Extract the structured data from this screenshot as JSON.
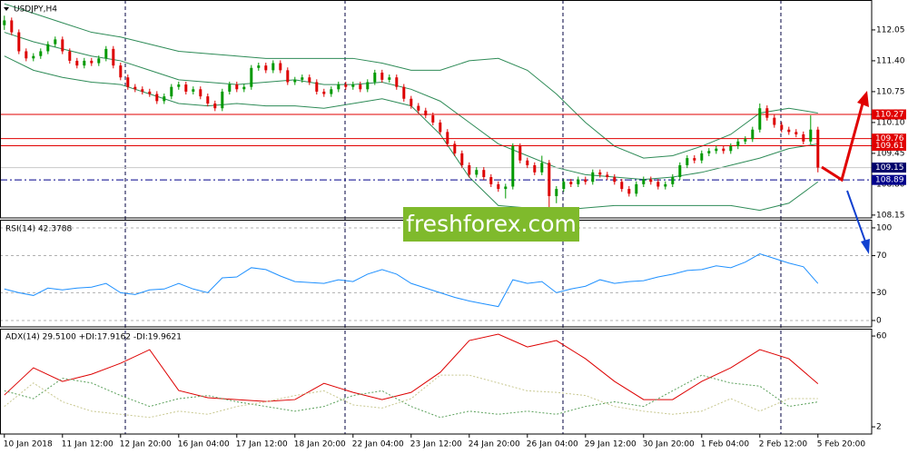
{
  "chart_data": [
    {
      "type": "candlestick",
      "title": "USDJPY,H4",
      "watermark": "freshforex.com",
      "up_color": "#009900",
      "down_color": "#dd0000",
      "xlim": [
        -0.6,
        119.4
      ],
      "xticks": [
        {
          "value": 0,
          "label": "10 Jan 2018"
        },
        {
          "value": 8,
          "label": "11 Jan 12:00"
        },
        {
          "value": 16,
          "label": "12 Jan 20:00"
        },
        {
          "value": 24,
          "label": "16 Jan 04:00"
        },
        {
          "value": 32,
          "label": "17 Jan 12:00"
        },
        {
          "value": 40,
          "label": "18 Jan 20:00"
        },
        {
          "value": 48,
          "label": "22 Jan 04:00"
        },
        {
          "value": 56,
          "label": "23 Jan 12:00"
        },
        {
          "value": 64,
          "label": "24 Jan 20:00"
        },
        {
          "value": 72,
          "label": "26 Jan 04:00"
        },
        {
          "value": 80,
          "label": "29 Jan 12:00"
        },
        {
          "value": 88,
          "label": "30 Jan 20:00"
        },
        {
          "value": 96,
          "label": "1 Feb 04:00"
        },
        {
          "value": 104,
          "label": "2 Feb 12:00"
        },
        {
          "value": 112,
          "label": "5 Feb 20:00"
        }
      ],
      "ylim": [
        108.09,
        112.68
      ],
      "yticks": [
        112.05,
        {
          "value": 111.4,
          "label": "111.40"
        },
        110.75,
        {
          "value": 110.1,
          "label": "110.10"
        },
        109.45,
        {
          "value": 108.8,
          "label": "108.80"
        },
        108.15
      ],
      "levels": [
        {
          "value": 110.27,
          "color": "#e00000",
          "line_color": "#e00000"
        },
        {
          "value": 109.76,
          "color": "#e00000",
          "line_color": "#e00000"
        },
        {
          "value": 109.61,
          "color": "#e00000",
          "line_color": "#e00000"
        },
        {
          "value": 109.15,
          "color": "#00006a",
          "line_color": "#c8c8c8"
        },
        {
          "value": 108.89,
          "color": "#00008b",
          "line_color": "#00008b",
          "dash": "8,3,2,3"
        }
      ],
      "ohlc": [
        [
          112.15,
          112.35,
          112.05,
          112.25
        ],
        [
          112.25,
          112.31,
          111.94,
          112.0
        ],
        [
          112.0,
          112.06,
          111.54,
          111.6
        ],
        [
          111.6,
          111.66,
          111.39,
          111.45
        ],
        [
          111.45,
          111.56,
          111.39,
          111.5
        ],
        [
          111.5,
          111.66,
          111.44,
          111.6
        ],
        [
          111.6,
          111.81,
          111.54,
          111.75
        ],
        [
          111.75,
          111.91,
          111.69,
          111.85
        ],
        [
          111.85,
          111.91,
          111.54,
          111.6
        ],
        [
          111.6,
          111.66,
          111.34,
          111.4
        ],
        [
          111.4,
          111.46,
          111.24,
          111.3
        ],
        [
          111.3,
          111.46,
          111.24,
          111.4
        ],
        [
          111.4,
          111.46,
          111.29,
          111.35
        ],
        [
          111.35,
          111.51,
          111.29,
          111.45
        ],
        [
          111.45,
          111.71,
          111.39,
          111.65
        ],
        [
          111.65,
          111.71,
          111.24,
          111.3
        ],
        [
          111.3,
          111.36,
          110.99,
          111.05
        ],
        [
          111.05,
          111.11,
          110.79,
          110.85
        ],
        [
          110.85,
          110.91,
          110.74,
          110.8
        ],
        [
          110.8,
          110.86,
          110.69,
          110.75
        ],
        [
          110.75,
          110.81,
          110.64,
          110.7
        ],
        [
          110.7,
          110.76,
          110.49,
          110.55
        ],
        [
          110.55,
          110.71,
          110.49,
          110.65
        ],
        [
          110.65,
          110.91,
          110.59,
          110.85
        ],
        [
          110.85,
          110.96,
          110.79,
          110.9
        ],
        [
          110.9,
          110.96,
          110.69,
          110.75
        ],
        [
          110.75,
          110.86,
          110.69,
          110.8
        ],
        [
          110.8,
          110.86,
          110.59,
          110.65
        ],
        [
          110.65,
          110.71,
          110.44,
          110.5
        ],
        [
          110.5,
          110.56,
          110.34,
          110.4
        ],
        [
          110.4,
          110.81,
          110.34,
          110.75
        ],
        [
          110.75,
          110.96,
          110.69,
          110.9
        ],
        [
          110.9,
          110.96,
          110.74,
          110.8
        ],
        [
          110.8,
          110.91,
          110.74,
          110.85
        ],
        [
          110.85,
          111.31,
          110.79,
          111.25
        ],
        [
          111.25,
          111.36,
          111.19,
          111.3
        ],
        [
          111.3,
          111.36,
          111.14,
          111.2
        ],
        [
          111.2,
          111.41,
          111.14,
          111.35
        ],
        [
          111.35,
          111.41,
          111.14,
          111.2
        ],
        [
          111.2,
          111.26,
          110.89,
          110.95
        ],
        [
          110.95,
          111.06,
          110.89,
          111.0
        ],
        [
          111.0,
          111.11,
          110.94,
          111.05
        ],
        [
          111.05,
          111.11,
          110.89,
          110.95
        ],
        [
          110.95,
          111.01,
          110.69,
          110.75
        ],
        [
          110.75,
          110.81,
          110.64,
          110.7
        ],
        [
          110.7,
          110.86,
          110.64,
          110.8
        ],
        [
          110.8,
          110.96,
          110.74,
          110.9
        ],
        [
          110.9,
          110.96,
          110.79,
          110.85
        ],
        [
          110.85,
          110.96,
          110.79,
          110.9
        ],
        [
          110.9,
          110.96,
          110.74,
          110.8
        ],
        [
          110.8,
          111.01,
          110.74,
          110.95
        ],
        [
          110.95,
          111.21,
          110.89,
          111.15
        ],
        [
          111.15,
          111.21,
          110.94,
          111.0
        ],
        [
          111.0,
          111.11,
          110.94,
          111.05
        ],
        [
          111.05,
          111.11,
          110.79,
          110.85
        ],
        [
          110.85,
          110.91,
          110.54,
          110.6
        ],
        [
          110.6,
          110.66,
          110.39,
          110.45
        ],
        [
          110.45,
          110.51,
          110.29,
          110.35
        ],
        [
          110.35,
          110.41,
          110.19,
          110.25
        ],
        [
          110.25,
          110.31,
          110.04,
          110.1
        ],
        [
          110.1,
          110.16,
          109.84,
          109.9
        ],
        [
          109.9,
          109.96,
          109.59,
          109.65
        ],
        [
          109.65,
          109.71,
          109.39,
          109.45
        ],
        [
          109.45,
          109.51,
          109.14,
          109.2
        ],
        [
          109.2,
          109.26,
          108.94,
          109.0
        ],
        [
          109.0,
          109.16,
          108.94,
          109.1
        ],
        [
          109.1,
          109.16,
          108.89,
          108.95
        ],
        [
          108.95,
          109.01,
          108.74,
          108.8
        ],
        [
          108.8,
          108.86,
          108.64,
          108.7
        ],
        [
          108.7,
          108.81,
          108.5,
          108.75
        ],
        [
          108.75,
          109.66,
          108.69,
          109.6
        ],
        [
          109.6,
          109.66,
          109.24,
          109.3
        ],
        [
          109.3,
          109.36,
          109.14,
          109.2
        ],
        [
          109.2,
          109.26,
          108.99,
          109.05
        ],
        [
          109.05,
          109.4,
          108.99,
          109.25
        ],
        [
          109.25,
          109.31,
          108.3,
          108.55
        ],
        [
          108.55,
          108.76,
          108.4,
          108.7
        ],
        [
          108.7,
          108.91,
          108.64,
          108.85
        ],
        [
          108.85,
          108.91,
          108.74,
          108.8
        ],
        [
          108.8,
          108.96,
          108.74,
          108.9
        ],
        [
          108.9,
          108.96,
          108.79,
          108.85
        ],
        [
          108.85,
          109.11,
          108.79,
          109.05
        ],
        [
          109.05,
          109.11,
          108.94,
          109.0
        ],
        [
          109.0,
          109.06,
          108.89,
          108.95
        ],
        [
          108.95,
          109.01,
          108.79,
          108.85
        ],
        [
          108.85,
          108.91,
          108.64,
          108.7
        ],
        [
          108.7,
          108.76,
          108.54,
          108.6
        ],
        [
          108.6,
          108.86,
          108.54,
          108.8
        ],
        [
          108.8,
          108.96,
          108.74,
          108.9
        ],
        [
          108.9,
          108.96,
          108.79,
          108.85
        ],
        [
          108.85,
          108.91,
          108.69,
          108.75
        ],
        [
          108.75,
          108.86,
          108.69,
          108.8
        ],
        [
          108.8,
          109.01,
          108.74,
          108.95
        ],
        [
          108.95,
          109.26,
          108.89,
          109.2
        ],
        [
          109.2,
          109.41,
          109.14,
          109.35
        ],
        [
          109.35,
          109.41,
          109.24,
          109.3
        ],
        [
          109.3,
          109.51,
          109.24,
          109.45
        ],
        [
          109.45,
          109.56,
          109.39,
          109.5
        ],
        [
          109.5,
          109.61,
          109.44,
          109.55
        ],
        [
          109.55,
          109.61,
          109.44,
          109.5
        ],
        [
          109.5,
          109.66,
          109.44,
          109.6
        ],
        [
          109.6,
          109.76,
          109.54,
          109.7
        ],
        [
          109.7,
          109.81,
          109.64,
          109.75
        ],
        [
          109.75,
          110.01,
          109.69,
          109.95
        ],
        [
          109.95,
          110.5,
          109.89,
          110.4
        ],
        [
          110.4,
          110.46,
          110.14,
          110.2
        ],
        [
          110.2,
          110.26,
          109.99,
          110.05
        ],
        [
          110.05,
          110.11,
          109.89,
          109.95
        ],
        [
          109.95,
          110.01,
          109.84,
          109.9
        ],
        [
          109.9,
          109.96,
          109.79,
          109.85
        ],
        [
          109.85,
          109.91,
          109.64,
          109.7
        ],
        [
          109.7,
          110.25,
          109.64,
          109.95
        ],
        [
          109.95,
          110.01,
          109.05,
          109.15
        ]
      ],
      "bands": {
        "color": "#2e8b57",
        "x": [
          0,
          4,
          8,
          12,
          16,
          20,
          24,
          28,
          32,
          36,
          40,
          44,
          48,
          52,
          56,
          60,
          64,
          68,
          72,
          76,
          80,
          84,
          88,
          92,
          96,
          100,
          104,
          108,
          112
        ],
        "upper": [
          112.6,
          112.4,
          112.2,
          112.0,
          111.9,
          111.75,
          111.6,
          111.55,
          111.5,
          111.45,
          111.45,
          111.45,
          111.45,
          111.35,
          111.2,
          111.2,
          111.4,
          111.45,
          111.2,
          110.7,
          110.1,
          109.6,
          109.35,
          109.4,
          109.6,
          109.85,
          110.3,
          110.4,
          110.3
        ],
        "middle": [
          112.0,
          111.8,
          111.65,
          111.5,
          111.4,
          111.2,
          111.0,
          110.95,
          110.9,
          110.95,
          111.0,
          110.9,
          110.9,
          110.95,
          110.8,
          110.55,
          110.1,
          109.65,
          109.4,
          109.15,
          109.0,
          108.95,
          108.9,
          108.95,
          109.05,
          109.2,
          109.35,
          109.55,
          109.65
        ],
        "lower": [
          111.5,
          111.2,
          111.05,
          110.95,
          110.9,
          110.7,
          110.5,
          110.45,
          110.5,
          110.45,
          110.45,
          110.4,
          110.5,
          110.6,
          110.45,
          109.85,
          108.95,
          108.35,
          108.3,
          108.25,
          108.3,
          108.35,
          108.35,
          108.35,
          108.35,
          108.35,
          108.25,
          108.4,
          108.85
        ]
      }
    },
    {
      "type": "line",
      "title": "RSI(14) 42.3788",
      "xlim": [
        -0.6,
        119.4
      ],
      "ylim": [
        -6.9,
        107.8
      ],
      "yticks": [
        100,
        70,
        30,
        0
      ],
      "dashed_grid": true,
      "x": [
        0,
        2,
        4,
        6,
        8,
        10,
        12,
        14,
        16,
        18,
        20,
        22,
        24,
        26,
        28,
        30,
        32,
        34,
        36,
        38,
        40,
        42,
        44,
        46,
        48,
        50,
        52,
        54,
        56,
        58,
        60,
        62,
        64,
        66,
        68,
        70,
        72,
        74,
        76,
        78,
        80,
        82,
        84,
        86,
        88,
        90,
        92,
        94,
        96,
        98,
        100,
        102,
        104,
        106,
        108,
        110,
        112
      ],
      "series": [
        {
          "color": "#1e90ff",
          "values": [
            34,
            30,
            27,
            35,
            33,
            35,
            36,
            40,
            30,
            28,
            33,
            34,
            40,
            34,
            30,
            46,
            47,
            57,
            55,
            48,
            42,
            41,
            40,
            44,
            42,
            50,
            55,
            50,
            40,
            35,
            30,
            25,
            21,
            18,
            15,
            44,
            40,
            42,
            30,
            34,
            37,
            44,
            40,
            42,
            43,
            47,
            50,
            54,
            55,
            59,
            57,
            63,
            72,
            67,
            62,
            58,
            40
          ]
        }
      ]
    },
    {
      "type": "line",
      "title": "ADX(14) 29.5100 +DI:17.9162 -DI:19.9621",
      "xlim": [
        -0.6,
        119.4
      ],
      "ylim": [
        -2.6,
        64.1
      ],
      "yticks": [
        60,
        2
      ],
      "x": [
        0,
        4,
        8,
        12,
        16,
        20,
        24,
        28,
        32,
        36,
        40,
        44,
        48,
        52,
        56,
        60,
        64,
        68,
        72,
        76,
        80,
        84,
        88,
        92,
        96,
        100,
        104,
        108,
        112
      ],
      "series": [
        {
          "color": "#dd0000",
          "values": [
            22.3,
            39.7,
            31,
            35.6,
            42.6,
            51.3,
            25.2,
            20.6,
            19.4,
            18.2,
            19.4,
            29.8,
            24,
            19.4,
            24,
            36.8,
            57.1,
            61.2,
            53,
            57.1,
            45.5,
            31,
            19.4,
            19.4,
            31,
            39.7,
            51.3,
            45.5,
            29.5
          ]
        },
        {
          "color": "#5aa05a",
          "dash": "2,2",
          "values": [
            25,
            20,
            33,
            30,
            22,
            15,
            20,
            22,
            18,
            15,
            12,
            15,
            22,
            25,
            15,
            8,
            12,
            10,
            12,
            10,
            15,
            18,
            15,
            25,
            35,
            30,
            28,
            15,
            17.9
          ]
        },
        {
          "color": "#c8c890",
          "dash": "2,2",
          "values": [
            15,
            30,
            18,
            12,
            10,
            8,
            12,
            10,
            15,
            18,
            22,
            25,
            16,
            14,
            20,
            35,
            35,
            30,
            25,
            24,
            22,
            15,
            12,
            10,
            12,
            20,
            12,
            20,
            20
          ]
        }
      ]
    }
  ]
}
